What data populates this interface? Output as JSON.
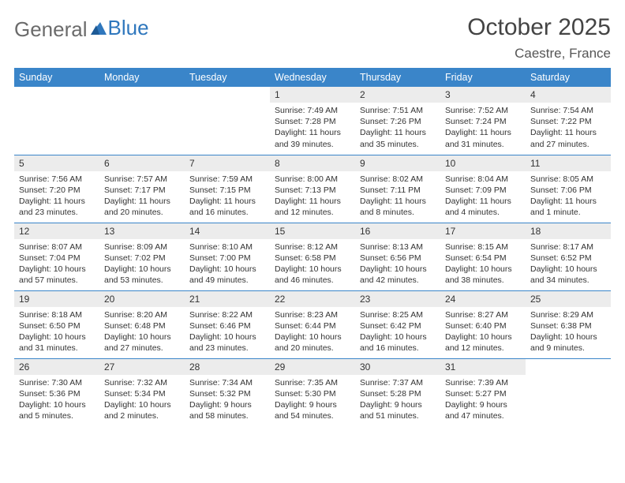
{
  "logo": {
    "text1": "General",
    "text2": "Blue"
  },
  "title": "October 2025",
  "subtitle": "Caestre, France",
  "colors": {
    "header_bg": "#3a85c9",
    "header_text": "#ffffff",
    "daynum_bg": "#ececec",
    "border": "#3a85c9",
    "logo_gray": "#6b6b6b",
    "logo_blue": "#2f77bd"
  },
  "day_headers": [
    "Sunday",
    "Monday",
    "Tuesday",
    "Wednesday",
    "Thursday",
    "Friday",
    "Saturday"
  ],
  "weeks": [
    [
      {
        "n": "",
        "sr": "",
        "ss": "",
        "dl": ""
      },
      {
        "n": "",
        "sr": "",
        "ss": "",
        "dl": ""
      },
      {
        "n": "",
        "sr": "",
        "ss": "",
        "dl": ""
      },
      {
        "n": "1",
        "sr": "7:49 AM",
        "ss": "7:28 PM",
        "dl": "11 hours and 39 minutes."
      },
      {
        "n": "2",
        "sr": "7:51 AM",
        "ss": "7:26 PM",
        "dl": "11 hours and 35 minutes."
      },
      {
        "n": "3",
        "sr": "7:52 AM",
        "ss": "7:24 PM",
        "dl": "11 hours and 31 minutes."
      },
      {
        "n": "4",
        "sr": "7:54 AM",
        "ss": "7:22 PM",
        "dl": "11 hours and 27 minutes."
      }
    ],
    [
      {
        "n": "5",
        "sr": "7:56 AM",
        "ss": "7:20 PM",
        "dl": "11 hours and 23 minutes."
      },
      {
        "n": "6",
        "sr": "7:57 AM",
        "ss": "7:17 PM",
        "dl": "11 hours and 20 minutes."
      },
      {
        "n": "7",
        "sr": "7:59 AM",
        "ss": "7:15 PM",
        "dl": "11 hours and 16 minutes."
      },
      {
        "n": "8",
        "sr": "8:00 AM",
        "ss": "7:13 PM",
        "dl": "11 hours and 12 minutes."
      },
      {
        "n": "9",
        "sr": "8:02 AM",
        "ss": "7:11 PM",
        "dl": "11 hours and 8 minutes."
      },
      {
        "n": "10",
        "sr": "8:04 AM",
        "ss": "7:09 PM",
        "dl": "11 hours and 4 minutes."
      },
      {
        "n": "11",
        "sr": "8:05 AM",
        "ss": "7:06 PM",
        "dl": "11 hours and 1 minute."
      }
    ],
    [
      {
        "n": "12",
        "sr": "8:07 AM",
        "ss": "7:04 PM",
        "dl": "10 hours and 57 minutes."
      },
      {
        "n": "13",
        "sr": "8:09 AM",
        "ss": "7:02 PM",
        "dl": "10 hours and 53 minutes."
      },
      {
        "n": "14",
        "sr": "8:10 AM",
        "ss": "7:00 PM",
        "dl": "10 hours and 49 minutes."
      },
      {
        "n": "15",
        "sr": "8:12 AM",
        "ss": "6:58 PM",
        "dl": "10 hours and 46 minutes."
      },
      {
        "n": "16",
        "sr": "8:13 AM",
        "ss": "6:56 PM",
        "dl": "10 hours and 42 minutes."
      },
      {
        "n": "17",
        "sr": "8:15 AM",
        "ss": "6:54 PM",
        "dl": "10 hours and 38 minutes."
      },
      {
        "n": "18",
        "sr": "8:17 AM",
        "ss": "6:52 PM",
        "dl": "10 hours and 34 minutes."
      }
    ],
    [
      {
        "n": "19",
        "sr": "8:18 AM",
        "ss": "6:50 PM",
        "dl": "10 hours and 31 minutes."
      },
      {
        "n": "20",
        "sr": "8:20 AM",
        "ss": "6:48 PM",
        "dl": "10 hours and 27 minutes."
      },
      {
        "n": "21",
        "sr": "8:22 AM",
        "ss": "6:46 PM",
        "dl": "10 hours and 23 minutes."
      },
      {
        "n": "22",
        "sr": "8:23 AM",
        "ss": "6:44 PM",
        "dl": "10 hours and 20 minutes."
      },
      {
        "n": "23",
        "sr": "8:25 AM",
        "ss": "6:42 PM",
        "dl": "10 hours and 16 minutes."
      },
      {
        "n": "24",
        "sr": "8:27 AM",
        "ss": "6:40 PM",
        "dl": "10 hours and 12 minutes."
      },
      {
        "n": "25",
        "sr": "8:29 AM",
        "ss": "6:38 PM",
        "dl": "10 hours and 9 minutes."
      }
    ],
    [
      {
        "n": "26",
        "sr": "7:30 AM",
        "ss": "5:36 PM",
        "dl": "10 hours and 5 minutes."
      },
      {
        "n": "27",
        "sr": "7:32 AM",
        "ss": "5:34 PM",
        "dl": "10 hours and 2 minutes."
      },
      {
        "n": "28",
        "sr": "7:34 AM",
        "ss": "5:32 PM",
        "dl": "9 hours and 58 minutes."
      },
      {
        "n": "29",
        "sr": "7:35 AM",
        "ss": "5:30 PM",
        "dl": "9 hours and 54 minutes."
      },
      {
        "n": "30",
        "sr": "7:37 AM",
        "ss": "5:28 PM",
        "dl": "9 hours and 51 minutes."
      },
      {
        "n": "31",
        "sr": "7:39 AM",
        "ss": "5:27 PM",
        "dl": "9 hours and 47 minutes."
      },
      {
        "n": "",
        "sr": "",
        "ss": "",
        "dl": ""
      }
    ]
  ],
  "labels": {
    "sunrise": "Sunrise: ",
    "sunset": "Sunset: ",
    "daylight": "Daylight: "
  }
}
